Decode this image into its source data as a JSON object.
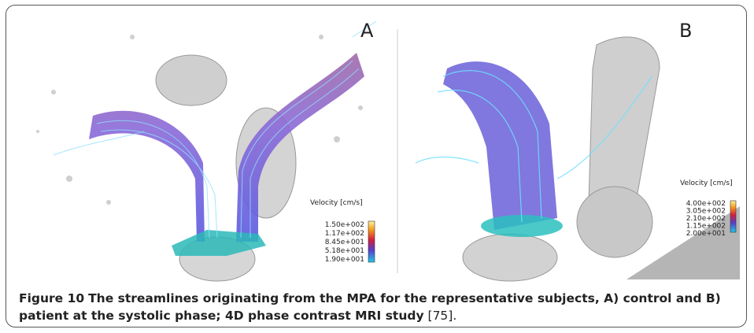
{
  "figure": {
    "panels": [
      {
        "label": "A",
        "legend_title": "Velocity [cm/s]",
        "legend_ticks": [
          "1.50e+002",
          "1.17e+002",
          "8.45e+001",
          "5.18e+001",
          "1.90e+001"
        ]
      },
      {
        "label": "B",
        "legend_title": "Velocity [cm/s]",
        "legend_ticks": [
          "4.00e+002",
          "3.05e+002",
          "2.10e+002",
          "1.15e+002",
          "2.00e+001"
        ]
      }
    ],
    "caption": {
      "label": "Figure 10",
      "text": "The streamlines originating from the MPA for the representative subjects, A) control and B) patient at the systolic phase; 4D phase contrast MRI study",
      "ref": "[75]."
    }
  }
}
